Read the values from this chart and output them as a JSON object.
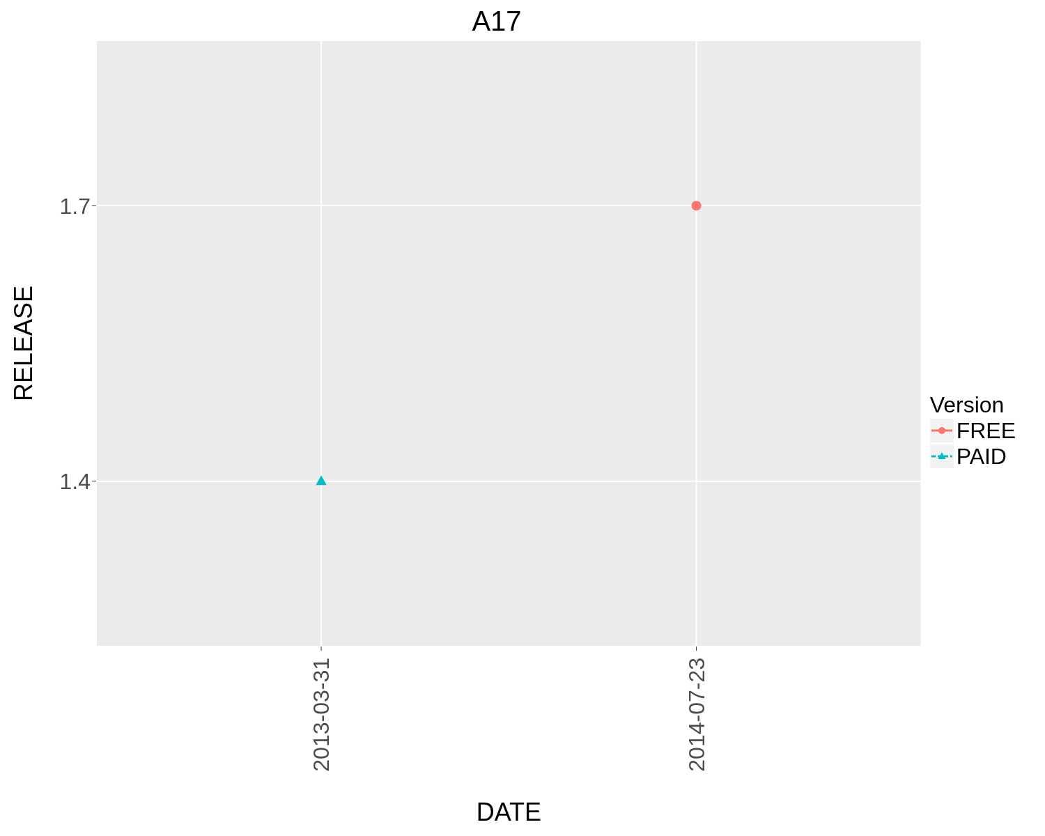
{
  "chart_data": {
    "type": "line",
    "title": "A17",
    "xlabel": "DATE",
    "ylabel": "RELEASE",
    "legend_title": "Version",
    "categories": [
      "2013-03-31",
      "2014-07-23"
    ],
    "series": [
      {
        "name": "FREE",
        "color": "#f8766d",
        "values": [
          null,
          1.7
        ],
        "marker": "circle",
        "line_style": "solid"
      },
      {
        "name": "PAID",
        "color": "#00bfc4",
        "values": [
          1.4,
          null
        ],
        "marker": "triangle",
        "line_style": "dashed"
      }
    ],
    "ylim": [
      1.22,
      1.88
    ],
    "yticks": [
      1.4,
      1.7
    ],
    "grid": true,
    "legend": "right"
  }
}
